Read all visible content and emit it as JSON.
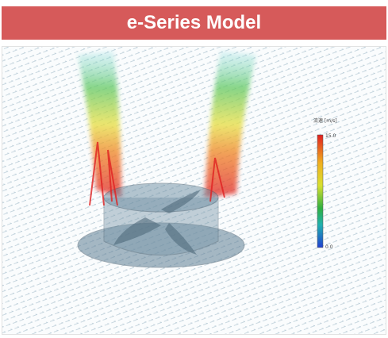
{
  "header": {
    "title": "e-Series Model"
  },
  "figure": {
    "legend_title": "流速 [m/s]",
    "max_label": "15.0",
    "min_label": "0.0"
  }
}
